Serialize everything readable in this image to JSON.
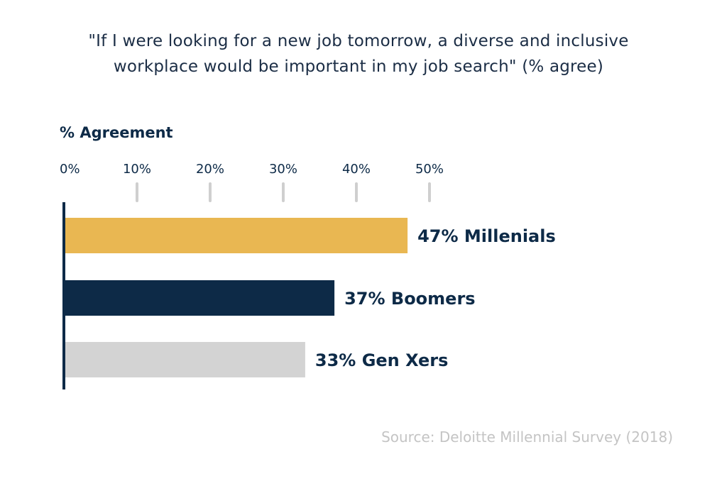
{
  "title_lines": [
    "\"If I were looking for a new job tomorrow, a diverse  and inclusive",
    "workplace would be important in my job search\" (% agree)"
  ],
  "source": "Source: Deloitte Millennial Survey (2018)",
  "chart_data": {
    "type": "bar",
    "orientation": "horizontal",
    "axis_title": "% Agreement",
    "xlim": [
      0,
      50
    ],
    "ticks": [
      "0%",
      "10%",
      "20%",
      "30%",
      "40%",
      "50%"
    ],
    "tick_values": [
      0,
      10,
      20,
      30,
      40,
      50
    ],
    "bars": [
      {
        "label": "47% Millenials",
        "value": 47,
        "color": "#e9b752"
      },
      {
        "label": "37% Boomers",
        "value": 37,
        "color": "#0d2a47"
      },
      {
        "label": "33% Gen Xers",
        "value": 33,
        "color": "#d3d3d3"
      }
    ],
    "colors": {
      "text": "#0d2a47",
      "tick_mark": "#cfcfcf",
      "axis_line": "#0d2a47"
    }
  }
}
